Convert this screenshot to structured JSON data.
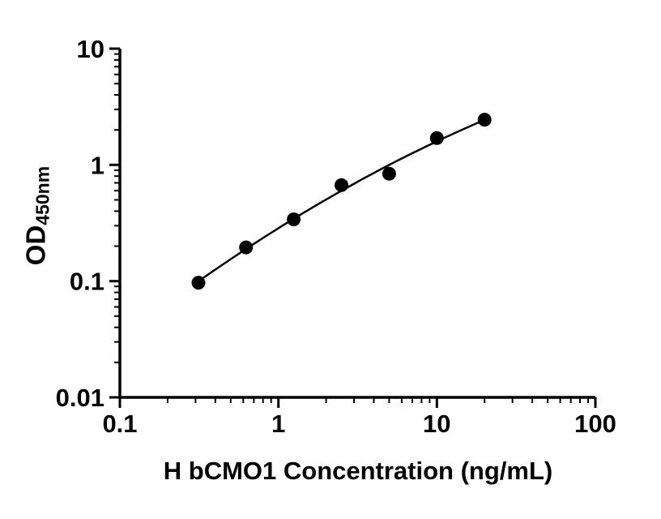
{
  "figure": {
    "background": "#ffffff",
    "x_axis": {
      "label": "H bCMO1 Concentration (ng/mL)",
      "scale": "log10",
      "min": 0.1,
      "max": 100,
      "major_ticks": [
        0.1,
        1,
        10,
        100
      ],
      "tick_labels": [
        "0.1",
        "1",
        "10",
        "100"
      ]
    },
    "y_axis": {
      "label_main": "OD",
      "label_sub": "450nm",
      "scale": "log10",
      "min": 0.01,
      "max": 10,
      "major_ticks": [
        0.01,
        0.1,
        1,
        10
      ],
      "tick_labels": [
        "0.01",
        "0.1",
        "1",
        "10"
      ]
    }
  },
  "chart_data": {
    "type": "scatter",
    "title": "",
    "xlabel": "H bCMO1 Concentration (ng/mL)",
    "ylabel": "OD450nm",
    "x_scale": "log",
    "y_scale": "log",
    "xlim": [
      0.1,
      100
    ],
    "ylim": [
      0.01,
      10
    ],
    "grid": false,
    "legend": "none",
    "points": [
      {
        "x": 0.313,
        "y": 0.097
      },
      {
        "x": 0.625,
        "y": 0.195
      },
      {
        "x": 1.25,
        "y": 0.34
      },
      {
        "x": 2.5,
        "y": 0.67
      },
      {
        "x": 5,
        "y": 0.84
      },
      {
        "x": 10,
        "y": 1.7
      },
      {
        "x": 20,
        "y": 2.45
      }
    ],
    "fit_curve": true,
    "marker_color": "#000000",
    "line_color": "#000000",
    "axis_color": "#000000"
  }
}
